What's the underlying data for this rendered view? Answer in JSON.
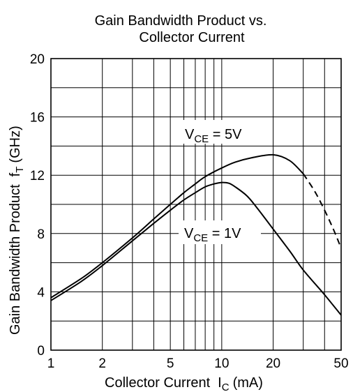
{
  "chart_data": {
    "type": "line",
    "title_line1": "Gain Bandwidth Product vs.",
    "title_line2": "Collector Current",
    "xlabel_text": "Collector Current",
    "xlabel_symbol": "I",
    "xlabel_sub": "C",
    "xlabel_unit": "(mA)",
    "ylabel_text": "Gain Bandwidth Product",
    "ylabel_symbol": "f",
    "ylabel_sub": "T",
    "ylabel_unit": "(GHz)",
    "x_scale": "log",
    "xlim": [
      1,
      50
    ],
    "ylim": [
      0,
      20
    ],
    "x_ticks": [
      1,
      2,
      5,
      10,
      20,
      50
    ],
    "x_tick_labels": [
      "1",
      "2",
      "5",
      "10",
      "20",
      "50"
    ],
    "x_grid": [
      1,
      2,
      3,
      4,
      5,
      6,
      7,
      8,
      9,
      10,
      20,
      30,
      40,
      50
    ],
    "y_ticks": [
      0,
      4,
      8,
      12,
      16,
      20
    ],
    "y_tick_labels": [
      "0",
      "4",
      "8",
      "12",
      "16",
      "20"
    ],
    "y_grid": [
      0,
      2,
      4,
      6,
      8,
      10,
      12,
      14,
      16,
      18,
      20
    ],
    "grid": true,
    "series": [
      {
        "name_main": "V",
        "name_sub": "CE",
        "name_value": " = 5V",
        "x": [
          1,
          1.5,
          2,
          3,
          4,
          5,
          6,
          7,
          8,
          10,
          12,
          15,
          20,
          25,
          30
        ],
        "y": [
          3.6,
          4.9,
          6.0,
          7.7,
          9.0,
          10.0,
          10.8,
          11.4,
          11.9,
          12.5,
          12.9,
          13.2,
          13.4,
          13.0,
          12.1
        ],
        "extrapolated": {
          "x": [
            30,
            35,
            40,
            45,
            50
          ],
          "y": [
            12.1,
            10.9,
            9.6,
            8.3,
            7.0
          ]
        }
      },
      {
        "name_main": "V",
        "name_sub": "CE",
        "name_value": " = 1V",
        "x": [
          1,
          1.5,
          2,
          3,
          4,
          5,
          6,
          7,
          8,
          9,
          10,
          11,
          12,
          14,
          16,
          20,
          25,
          30,
          40,
          50
        ],
        "y": [
          3.4,
          4.7,
          5.8,
          7.5,
          8.7,
          9.6,
          10.3,
          10.8,
          11.2,
          11.4,
          11.5,
          11.45,
          11.2,
          10.6,
          9.8,
          8.3,
          6.8,
          5.5,
          3.8,
          2.4
        ]
      }
    ]
  }
}
